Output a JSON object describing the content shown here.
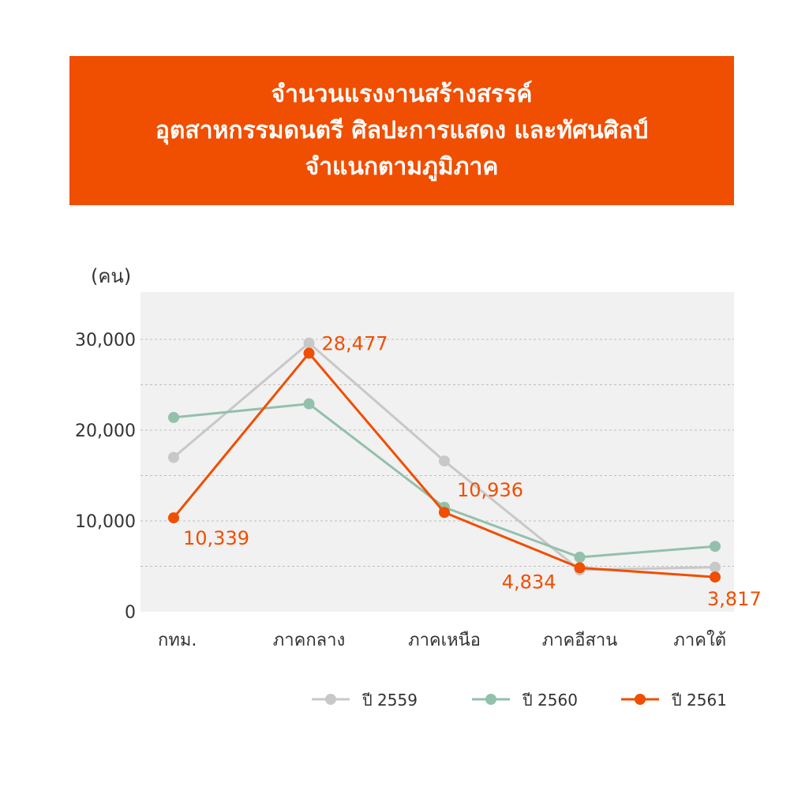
{
  "title": {
    "line1": "จำนวนแรงงานสร้างสรรค์",
    "line2": "อุตสาหกรรมดนตรี ศิลปะการแสดง และทัศนศิลป์",
    "line3": "จำแนกตามภูมิภาค"
  },
  "colors": {
    "title_bg": "#f04e00",
    "plot_bg": "#f1f1f1",
    "grid": "#bdbdbd"
  },
  "chart_data": {
    "type": "line",
    "ylabel": "(คน)",
    "xlabel": "",
    "ylim": [
      0,
      35000
    ],
    "yticks": [
      0,
      10000,
      20000,
      30000
    ],
    "ytick_labels": [
      "0",
      "10,000",
      "20,000",
      "30,000"
    ],
    "grid": true,
    "legend_position": "bottom",
    "categories": [
      "กทม.",
      "ภาคกลาง",
      "ภาคเหนือ",
      "ภาคอีสาน",
      "ภาคใต้"
    ],
    "series": [
      {
        "name": "ปี 2559",
        "color": "#c8c8c8",
        "values": [
          17000,
          29600,
          16600,
          4600,
          4900
        ]
      },
      {
        "name": "ปี 2560",
        "color": "#93c0ab",
        "values": [
          21400,
          22900,
          11500,
          6000,
          7200
        ]
      },
      {
        "name": "ปี 2561",
        "color": "#f04e00",
        "values": [
          10339,
          28477,
          10936,
          4834,
          3817
        ]
      }
    ],
    "data_labels": [
      "10,339",
      "28,477",
      "10,936",
      "4,834",
      "3,817"
    ]
  }
}
